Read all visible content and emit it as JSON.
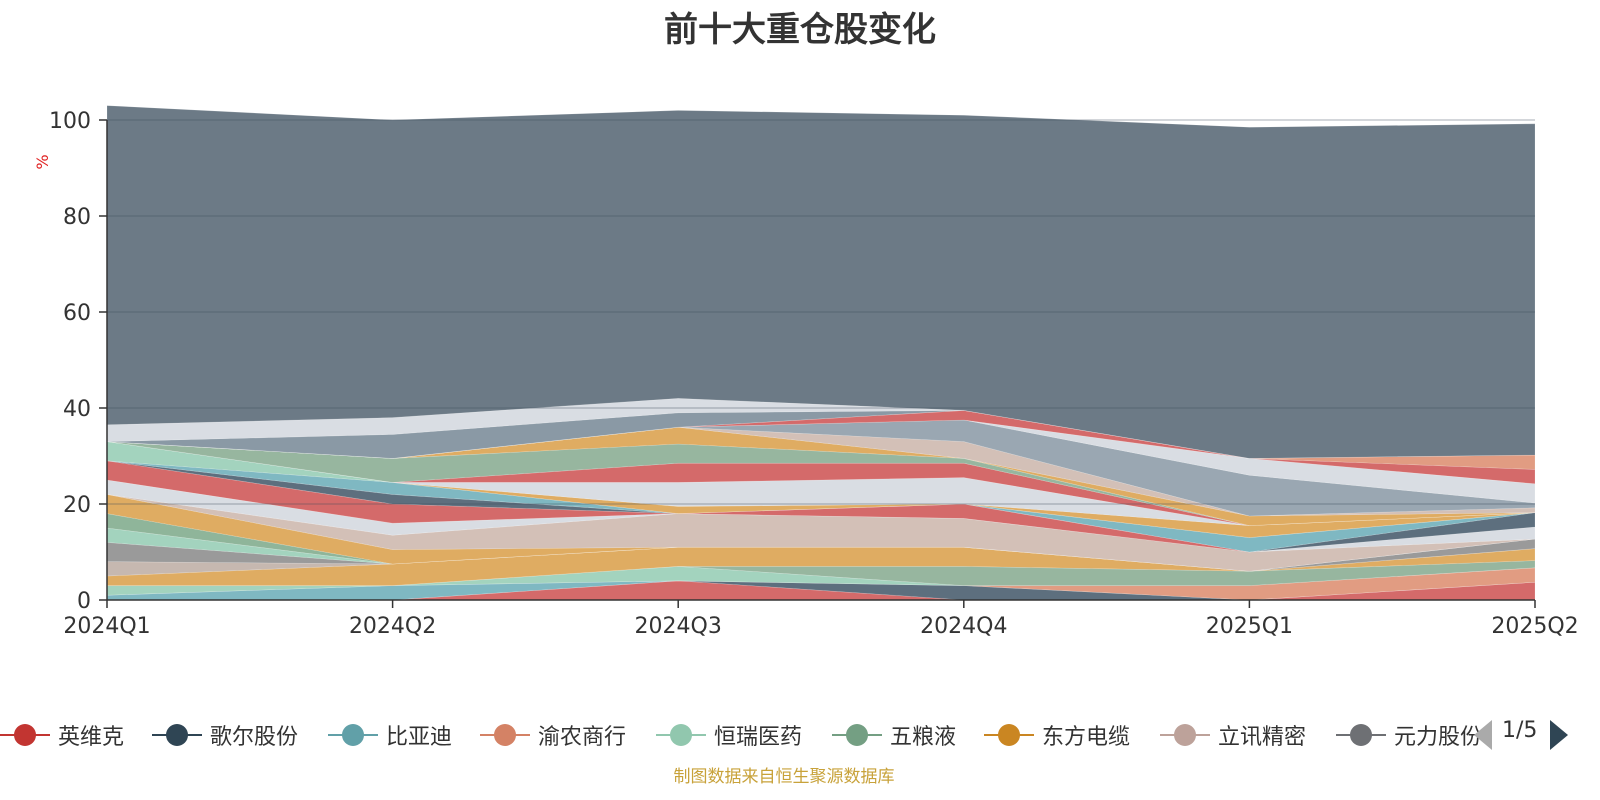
{
  "chart_data": {
    "type": "area",
    "title": "前十大重仓股变化",
    "ylabel": "%",
    "ylim": [
      0,
      100
    ],
    "yticks": [
      0,
      20,
      40,
      60,
      80,
      100
    ],
    "categories": [
      "2024Q1",
      "2024Q2",
      "2024Q3",
      "2024Q4",
      "2025Q1",
      "2025Q2"
    ],
    "stacked": true,
    "grid": true,
    "legend_position": "bottom",
    "series": [
      {
        "name": "英维克",
        "color": "#d46a6a",
        "values": [
          0,
          0,
          4,
          0,
          0,
          3.7
        ]
      },
      {
        "name": "歌尔股份",
        "color": "#5d6f7e",
        "values": [
          0,
          0,
          0,
          3,
          0,
          0
        ]
      },
      {
        "name": "比亚迪",
        "color": "#7fb8c2",
        "values": [
          1,
          3,
          0,
          0,
          0,
          0
        ]
      },
      {
        "name": "渝农商行",
        "color": "#e19c82",
        "values": [
          0,
          0,
          0,
          0,
          3,
          3
        ]
      },
      {
        "name": "恒瑞医药",
        "color": "#a3d3be",
        "values": [
          2,
          0,
          3,
          0,
          0,
          0
        ]
      },
      {
        "name": "五粮液",
        "color": "#97b69f",
        "values": [
          0,
          0,
          0,
          4,
          3,
          1.5
        ]
      },
      {
        "name": "东方电缆",
        "color": "#dfac62",
        "values": [
          2,
          4.5,
          4,
          4,
          0,
          2.5
        ]
      },
      {
        "name": "立讯精密",
        "color": "#c6b8b0",
        "values": [
          3,
          0,
          0,
          0,
          0,
          0
        ]
      },
      {
        "name": "元力股份",
        "color": "#9a9a9a",
        "values": [
          4,
          0,
          0,
          0,
          0,
          2
        ]
      },
      {
        "name": "",
        "color": "#a3d3be",
        "values": [
          3,
          0,
          0,
          0,
          0,
          0
        ]
      },
      {
        "name": "",
        "color": "#8fb59a",
        "values": [
          3,
          0,
          0,
          0,
          0,
          0
        ]
      },
      {
        "name": "",
        "color": "#dfac62",
        "values": [
          4,
          3,
          0,
          0,
          0,
          0
        ]
      },
      {
        "name": "",
        "color": "#d3c0b7",
        "values": [
          0,
          3,
          7,
          6,
          4,
          0
        ]
      },
      {
        "name": "",
        "color": "#d9dde3",
        "values": [
          3,
          2.5,
          0,
          0,
          0,
          2.5
        ]
      },
      {
        "name": "",
        "color": "#d46a6a",
        "values": [
          4,
          4,
          0,
          3,
          0,
          0
        ]
      },
      {
        "name": "",
        "color": "#5d6f7e",
        "values": [
          0,
          2,
          0,
          0,
          0,
          3
        ]
      },
      {
        "name": "",
        "color": "#7fb8c2",
        "values": [
          0,
          2.5,
          0,
          0,
          3,
          0
        ]
      },
      {
        "name": "",
        "color": "#a3d3be",
        "values": [
          4,
          0,
          0,
          0,
          0,
          0
        ]
      },
      {
        "name": "",
        "color": "#dfac62",
        "values": [
          0,
          0,
          1.5,
          0,
          2.5,
          0
        ]
      },
      {
        "name": "",
        "color": "#d9dde3",
        "values": [
          0,
          0,
          5,
          5.5,
          0,
          0
        ]
      },
      {
        "name": "",
        "color": "#d46a6a",
        "values": [
          0,
          0,
          4,
          3,
          0,
          0
        ]
      },
      {
        "name": "",
        "color": "#97b69f",
        "values": [
          0,
          5,
          4,
          1,
          0,
          0
        ]
      },
      {
        "name": "",
        "color": "#dfac62",
        "values": [
          0,
          0,
          3.5,
          0,
          2,
          0
        ]
      },
      {
        "name": "",
        "color": "#d3c0b7",
        "values": [
          0,
          0,
          0,
          3.5,
          0,
          1
        ]
      },
      {
        "name": "",
        "color": "#9aa7b2",
        "values": [
          0,
          0,
          0,
          4.5,
          8.5,
          1
        ]
      },
      {
        "name": "",
        "color": "#d9dde3",
        "values": [
          0,
          0,
          0,
          0,
          3.5,
          4
        ]
      },
      {
        "name": "",
        "color": "#d46a6a",
        "values": [
          0,
          0,
          0,
          2,
          0,
          3
        ]
      },
      {
        "name": "",
        "color": "#e19c82",
        "values": [
          0,
          0,
          0,
          0,
          0,
          3
        ]
      },
      {
        "name": "",
        "color": "#8a99a5",
        "values": [
          0,
          5,
          3,
          0,
          0,
          0
        ]
      },
      {
        "name": "",
        "color": "#d9dde3",
        "values": [
          3.5,
          3.5,
          3,
          0,
          0,
          0
        ]
      },
      {
        "name": "",
        "color": "#6c7a86",
        "values": [
          66.5,
          62,
          60,
          61.5,
          69,
          69
        ]
      }
    ]
  },
  "legend": {
    "items": [
      {
        "label": "英维克",
        "color": "#c23531"
      },
      {
        "label": "歌尔股份",
        "color": "#2f4554"
      },
      {
        "label": "比亚迪",
        "color": "#61a0a8"
      },
      {
        "label": "渝农商行",
        "color": "#d48265"
      },
      {
        "label": "恒瑞医药",
        "color": "#91c7ae"
      },
      {
        "label": "五粮液",
        "color": "#749f83"
      },
      {
        "label": "东方电缆",
        "color": "#ca8622"
      },
      {
        "label": "立讯精密",
        "color": "#bda29a"
      },
      {
        "label": "元力股份",
        "color": "#6e7074"
      }
    ],
    "page": "1/5"
  },
  "source_note": "制图数据来自恒生聚源数据库"
}
